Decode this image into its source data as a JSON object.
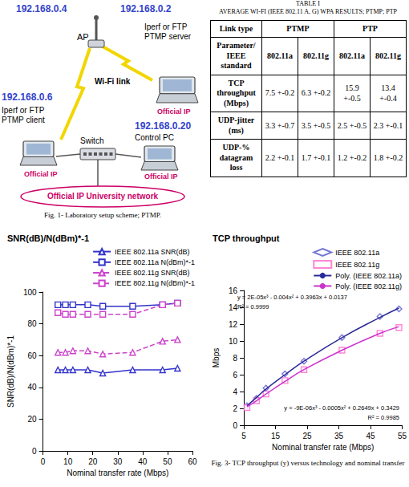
{
  "diagram": {
    "nodes": [
      {
        "ip": "192.168.0.4",
        "label": "AP"
      },
      {
        "ip": "192.168.0.2",
        "label": "Iperf or FTP PTMP server",
        "network_label": "Official IP"
      },
      {
        "ip": "192.168.0.6",
        "label": "Iperf or FTP PTMP client",
        "network_label": "Official IP"
      },
      {
        "label": "Switch"
      },
      {
        "ip": "192.168.0.20",
        "label": "Control PC",
        "network_label": "Official IP"
      },
      {
        "label": "Official IP University network"
      }
    ],
    "link_label": "Wi-Fi link",
    "caption": "Fig. 1- Laboratory setup scheme; PTMP."
  },
  "table": {
    "title": "TABLE I",
    "subtitle": "AVERAGE WI-FI (IEEE 802.11 A, G) WPA RESULTS; PTMP; PTP",
    "header": [
      "Link type",
      "PTMP",
      "PTP"
    ],
    "rows": [
      [
        "Parameter/ IEEE standard",
        "802.11a",
        "802.11g",
        "802.11a",
        "802.11g"
      ],
      [
        "TCP throughput (Mbps)",
        "7.5 +-0.2",
        "6.3 +-0.2",
        "15.9 +-0.5",
        "13.4 +-0.4"
      ],
      [
        "UDP-jitter (ms)",
        "3.3 +-0.7",
        "3.5 +-0.5",
        "2.5 +-0.5",
        "2.3 +-0.1"
      ],
      [
        "UDP-% datagram loss",
        "2.2 +-0.1",
        "1.7 +-0.1",
        "1.2 +-0.2",
        "1.8 +-0.2"
      ]
    ]
  },
  "captions": [
    "Fig. 3- TCP throughput (y) versus technology and nominal transfer"
  ],
  "chart_data": [
    {
      "type": "line",
      "title": "SNR(dB)/N(dBm)*-1",
      "xlabel": "Nominal transfer rate (Mbps)",
      "ylabel": "SNR(dB)/N(dBm)*-1",
      "x": [
        6,
        9,
        12,
        18,
        24,
        36,
        48,
        54
      ],
      "series": [
        {
          "name": "IEEE 802.11a SNR(dB)",
          "color": "#3333cc",
          "marker": "triangle",
          "line_style": "solid",
          "values": [
            51,
            51,
            51,
            51,
            49,
            51,
            51,
            52
          ]
        },
        {
          "name": "IEEE 802.11a N(dBm)*-1",
          "color": "#3333cc",
          "marker": "square",
          "line_style": "solid",
          "values": [
            92,
            92,
            92,
            92,
            91,
            91,
            92,
            93
          ]
        },
        {
          "name": "IEEE 802.11g SNR(dB)",
          "color": "#cc44cc",
          "marker": "triangle",
          "line_style": "dashed",
          "values": [
            62,
            62,
            63,
            63,
            61,
            62,
            69,
            70
          ]
        },
        {
          "name": "IEEE 802.11g N(dBm)*-1",
          "color": "#cc44cc",
          "marker": "square",
          "line_style": "dashed",
          "values": [
            87,
            86,
            86,
            86,
            86,
            86,
            92,
            93
          ]
        }
      ],
      "xlim": [
        0,
        60
      ],
      "xticks": [
        0,
        10,
        20,
        30,
        40,
        50,
        60
      ],
      "ylim": [
        0,
        100
      ],
      "yticks": [
        0,
        20,
        40,
        60,
        80,
        100
      ],
      "grid": false,
      "legend": "top-right"
    },
    {
      "type": "scatter",
      "title": "TCP throughput",
      "xlabel": "Nominal transfer rate (Mbps)",
      "ylabel": "Mbps",
      "x": [
        6,
        9,
        12,
        18,
        24,
        36,
        48,
        54
      ],
      "series": [
        {
          "name": "IEEE 802.11a",
          "type": "scatter",
          "color": "#5555cc",
          "marker": "diamond",
          "values": [
            2.3,
            3.2,
            4.4,
            6.1,
            7.6,
            10.4,
            12.9,
            13.8
          ]
        },
        {
          "name": "IEEE 802.11g",
          "type": "scatter",
          "color": "#ff66cc",
          "marker": "square",
          "values": [
            2.1,
            2.9,
            3.7,
            5.3,
            6.6,
            8.9,
            10.9,
            11.6
          ]
        },
        {
          "name": "Poly. (IEEE 802.11a)",
          "type": "line",
          "color": "#2a2a99",
          "line_style": "solid",
          "values": [
            2.3,
            3.3,
            4.3,
            6.0,
            7.6,
            10.4,
            12.8,
            13.9
          ]
        },
        {
          "name": "Poly. (IEEE 802.11g)",
          "type": "line",
          "color": "#cc33cc",
          "line_style": "solid",
          "values": [
            2.2,
            2.9,
            3.7,
            5.2,
            6.6,
            8.9,
            10.9,
            11.7
          ]
        }
      ],
      "annotations": [
        "y = 2E-05x³ - 0.004x² + 0.3963x + 0.0137",
        "R² = 0.9999",
        "y = -9E-06x³ - 0.0005x² + 0.2649x + 0.3429",
        "R² = 0.9985"
      ],
      "xlim": [
        5,
        55
      ],
      "xticks": [
        5,
        15,
        25,
        35,
        45,
        55
      ],
      "ylim": [
        0,
        16
      ],
      "yticks": [
        0,
        2,
        4,
        6,
        8,
        10,
        12,
        14,
        16
      ],
      "grid": false,
      "legend": "top-right"
    }
  ]
}
